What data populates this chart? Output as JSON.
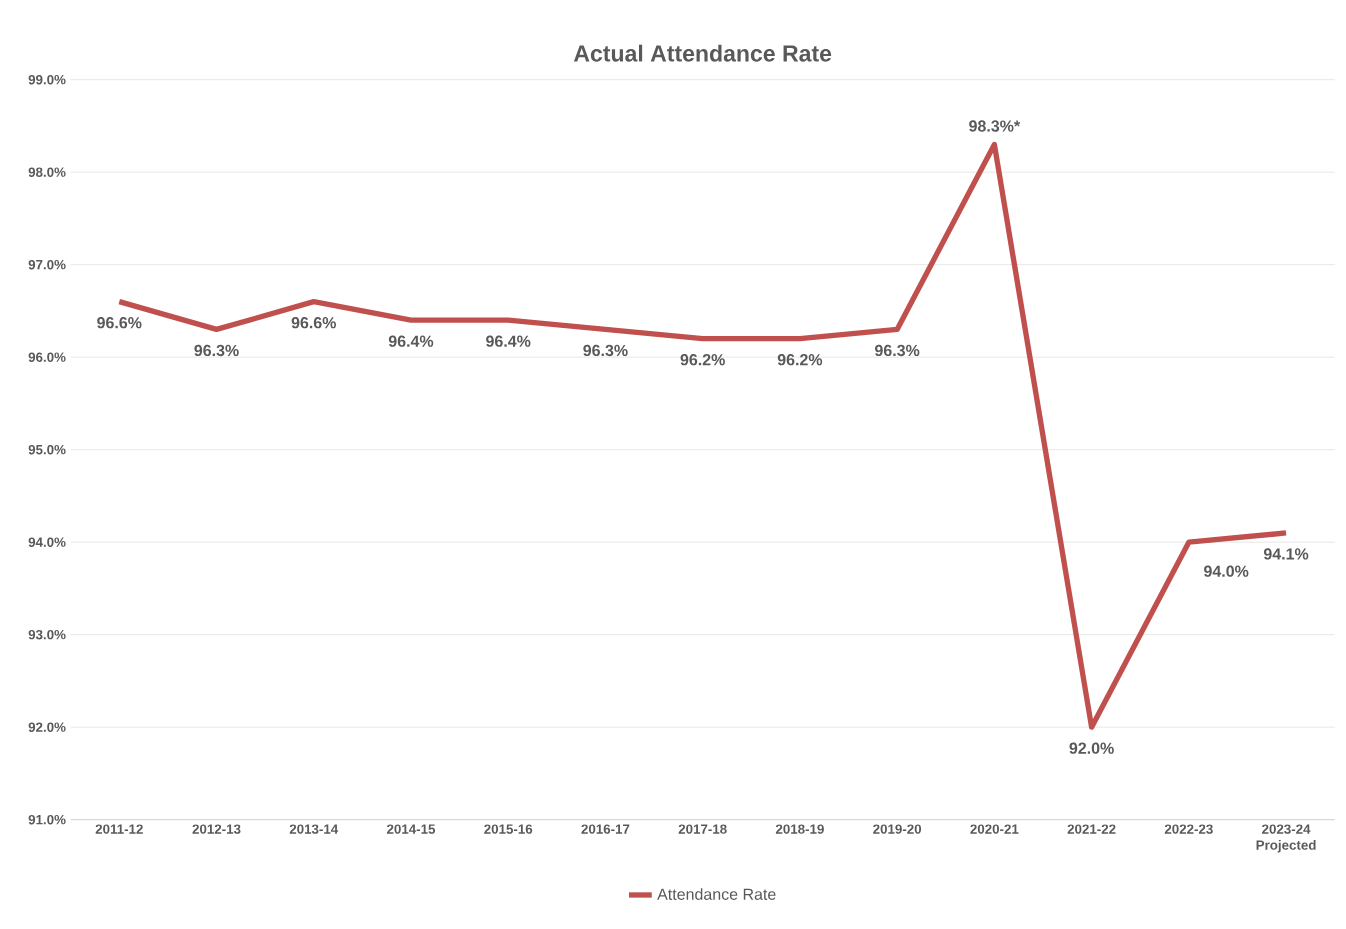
{
  "chart_data": {
    "type": "line",
    "title": "Actual Attendance Rate",
    "categories": [
      "2011-12",
      "2012-13",
      "2013-14",
      "2014-15",
      "2015-16",
      "2016-17",
      "2017-18",
      "2018-19",
      "2019-20",
      "2020-21",
      "2021-22",
      "2022-23",
      "2023-24 Projected"
    ],
    "series": [
      {
        "name": "Attendance Rate",
        "color": "#c0504d",
        "values": [
          96.6,
          96.3,
          96.6,
          96.4,
          96.4,
          96.3,
          96.2,
          96.2,
          96.3,
          98.3,
          92.0,
          94.0,
          94.1
        ],
        "value_labels": [
          "96.6%",
          "96.3%",
          "96.6%",
          "96.4%",
          "96.4%",
          "96.3%",
          "96.2%",
          "96.2%",
          "96.3%",
          "98.3%*",
          "92.0%",
          "94.0%",
          "94.1%"
        ]
      }
    ],
    "ylim": [
      91,
      99
    ],
    "yticks": [
      {
        "value": 91,
        "label": "91.0%"
      },
      {
        "value": 92,
        "label": "92.0%"
      },
      {
        "value": 93,
        "label": "93.0%"
      },
      {
        "value": 94,
        "label": "94.0%"
      },
      {
        "value": 95,
        "label": "95.0%"
      },
      {
        "value": 96,
        "label": "96.0%"
      },
      {
        "value": 97,
        "label": "97.0%"
      },
      {
        "value": 98,
        "label": "98.0%"
      },
      {
        "value": 99,
        "label": "99.0%"
      }
    ],
    "grid": "y",
    "legend": "bottom",
    "marker": "none",
    "line_style": "solid"
  }
}
